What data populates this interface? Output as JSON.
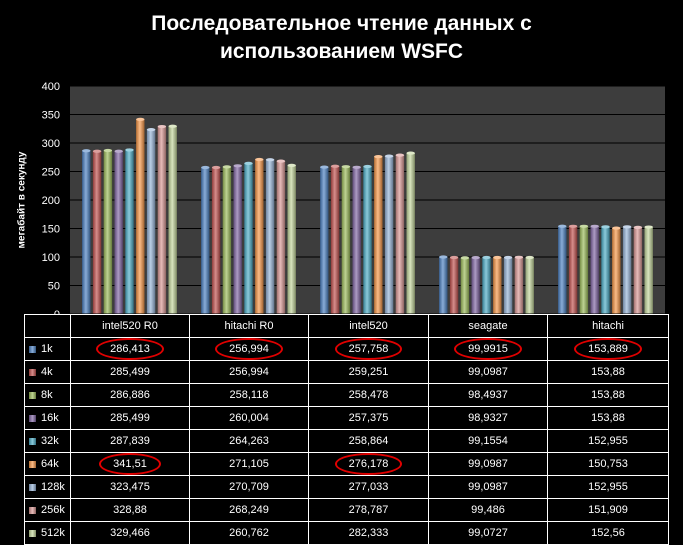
{
  "chart_data": {
    "type": "bar",
    "title": "Последовательное чтение данных  с использованием  WSFC",
    "title_lines": [
      "Последовательное чтение данных  с",
      "использованием  WSFC"
    ],
    "ylabel": "мегабайт в секунду",
    "xlabel": "",
    "ylim": [
      0,
      400
    ],
    "yticks": [
      "0",
      "50",
      "100",
      "150",
      "200",
      "250",
      "300",
      "350",
      "400"
    ],
    "grid": true,
    "legend": "table-below",
    "categories": [
      "intel520 R0",
      "hitachi R0",
      "intel520",
      "seagate",
      "hitachi"
    ],
    "series": [
      {
        "name": "1k",
        "color": "#4a7fc1",
        "values": [
          286.413,
          256.994,
          257.758,
          99.9915,
          153.889
        ],
        "labels": [
          "286,413",
          "256,994",
          "257,758",
          "99,9915",
          "153,889"
        ]
      },
      {
        "name": "4k",
        "color": "#c0504d",
        "values": [
          285.499,
          256.994,
          259.251,
          99.0987,
          153.88
        ],
        "labels": [
          "285,499",
          "256,994",
          "259,251",
          "99,0987",
          "153,88"
        ]
      },
      {
        "name": "8k",
        "color": "#9bbb59",
        "values": [
          286.886,
          258.118,
          258.478,
          98.4937,
          153.88
        ],
        "labels": [
          "286,886",
          "258,118",
          "258,478",
          "98,4937",
          "153,88"
        ]
      },
      {
        "name": "16k",
        "color": "#8064a2",
        "values": [
          285.499,
          260.004,
          257.375,
          98.9327,
          153.88
        ],
        "labels": [
          "285,499",
          "260,004",
          "257,375",
          "98,9327",
          "153,88"
        ]
      },
      {
        "name": "32k",
        "color": "#4bacc6",
        "values": [
          287.839,
          264.263,
          258.864,
          99.1554,
          152.955
        ],
        "labels": [
          "287,839",
          "264,263",
          "258,864",
          "99,1554",
          "152,955"
        ]
      },
      {
        "name": "64k",
        "color": "#f79646",
        "values": [
          341.51,
          271.105,
          276.178,
          99.0987,
          150.753
        ],
        "labels": [
          "341,51",
          "271,105",
          "276,178",
          "99,0987",
          "150,753"
        ]
      },
      {
        "name": "128k",
        "color": "#95b3d7",
        "values": [
          323.475,
          270.709,
          277.033,
          99.0987,
          152.955
        ],
        "labels": [
          "323,475",
          "270,709",
          "277,033",
          "99,0987",
          "152,955"
        ]
      },
      {
        "name": "256k",
        "color": "#d99694",
        "values": [
          328.88,
          268.249,
          278.787,
          99.486,
          151.909
        ],
        "labels": [
          "328,88",
          "268,249",
          "278,787",
          "99,486",
          "151,909"
        ]
      },
      {
        "name": "512k",
        "color": "#c3d69b",
        "values": [
          329.466,
          260.762,
          282.333,
          99.0727,
          152.56
        ],
        "labels": [
          "329,466",
          "260,762",
          "282,333",
          "99,0727",
          "152,56"
        ]
      }
    ],
    "highlighted_cells": [
      {
        "series": "1k",
        "category": "intel520 R0"
      },
      {
        "series": "1k",
        "category": "hitachi R0"
      },
      {
        "series": "1k",
        "category": "intel520"
      },
      {
        "series": "1k",
        "category": "seagate"
      },
      {
        "series": "1k",
        "category": "hitachi"
      },
      {
        "series": "64k",
        "category": "intel520 R0"
      },
      {
        "series": "64k",
        "category": "intel520"
      }
    ],
    "colors": {
      "background": "#000000",
      "plot_background": "#3d3d3d",
      "grid": "#000000",
      "highlight": "#e00000"
    }
  }
}
